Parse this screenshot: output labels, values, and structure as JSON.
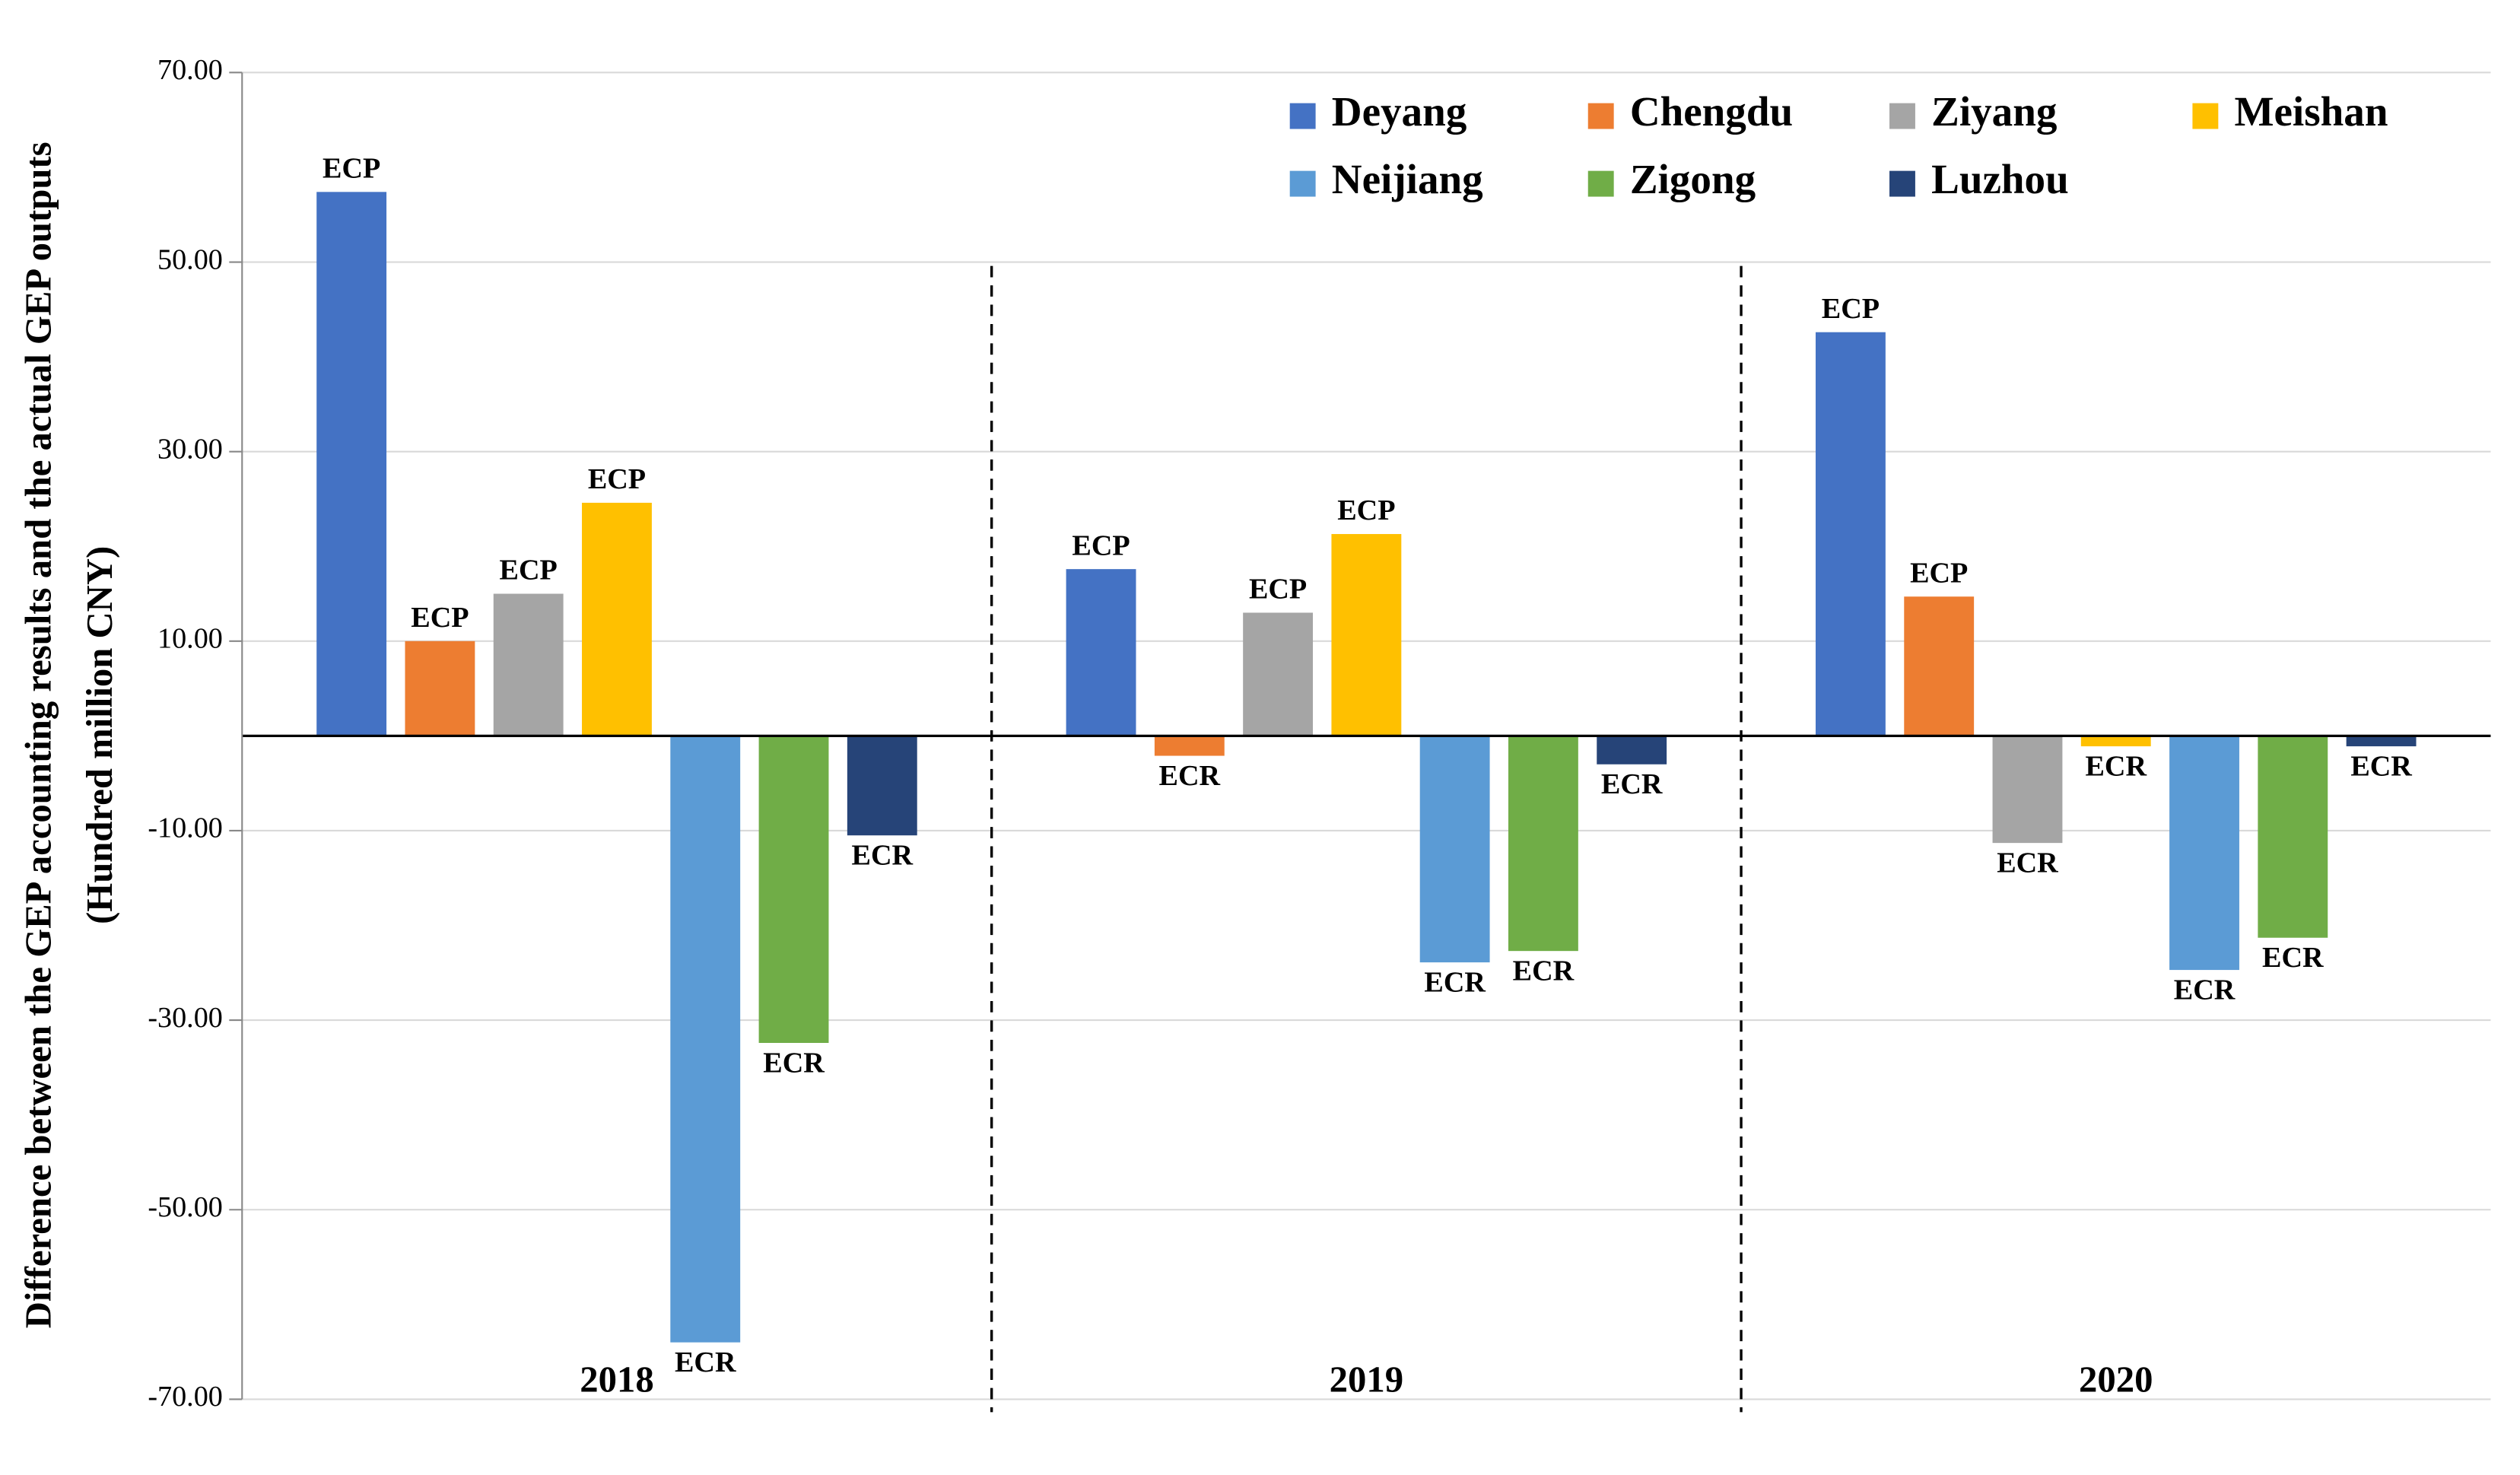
{
  "chart_data": {
    "type": "bar",
    "y_label": [
      "Difference between the GEP accounting results and the actual GEP outputs",
      "(Hundred million CNY)"
    ],
    "categories": [
      "2018",
      "2019",
      "2020"
    ],
    "series": [
      {
        "name": "Deyang",
        "color": "#4472c4",
        "values": [
          57.4,
          17.6,
          42.6
        ],
        "bar_labels": [
          "ECP",
          "ECP",
          "ECP"
        ]
      },
      {
        "name": "Chengdu",
        "color": "#ed7d31",
        "values": [
          10.0,
          -2.1,
          14.7
        ],
        "bar_labels": [
          "ECP",
          "ECR",
          "ECP"
        ]
      },
      {
        "name": "Ziyang",
        "color": "#a5a5a5",
        "values": [
          15.0,
          13.0,
          -11.3
        ],
        "bar_labels": [
          "ECP",
          "ECP",
          "ECR"
        ]
      },
      {
        "name": "Meishan",
        "color": "#ffc000",
        "values": [
          24.6,
          21.3,
          -1.1
        ],
        "bar_labels": [
          "ECP",
          "ECP",
          "ECR"
        ]
      },
      {
        "name": "Neijiang",
        "color": "#5b9bd5",
        "values": [
          -64.0,
          -23.9,
          -24.7
        ],
        "bar_labels": [
          "ECR",
          "ECR",
          "ECR"
        ]
      },
      {
        "name": "Zigong",
        "color": "#70ad47",
        "values": [
          -32.4,
          -22.7,
          -21.3
        ],
        "bar_labels": [
          "ECR",
          "ECR",
          "ECR"
        ]
      },
      {
        "name": "Luzhou",
        "color": "#264478",
        "values": [
          -10.5,
          -3.0,
          -1.1
        ],
        "bar_labels": [
          "ECR",
          "ECR",
          "ECR"
        ]
      }
    ],
    "ylim": [
      -70,
      70
    ],
    "yticks": [
      {
        "value": 70,
        "label": "70.00"
      },
      {
        "value": 50,
        "label": "50.00"
      },
      {
        "value": 30,
        "label": "30.00"
      },
      {
        "value": 10,
        "label": "10.00"
      },
      {
        "value": -10,
        "label": "-10.00"
      },
      {
        "value": -30,
        "label": "-30.00"
      },
      {
        "value": -50,
        "label": "-50.00"
      },
      {
        "value": -70,
        "label": "-70.00"
      }
    ],
    "grid": true,
    "legend": "top-right"
  }
}
